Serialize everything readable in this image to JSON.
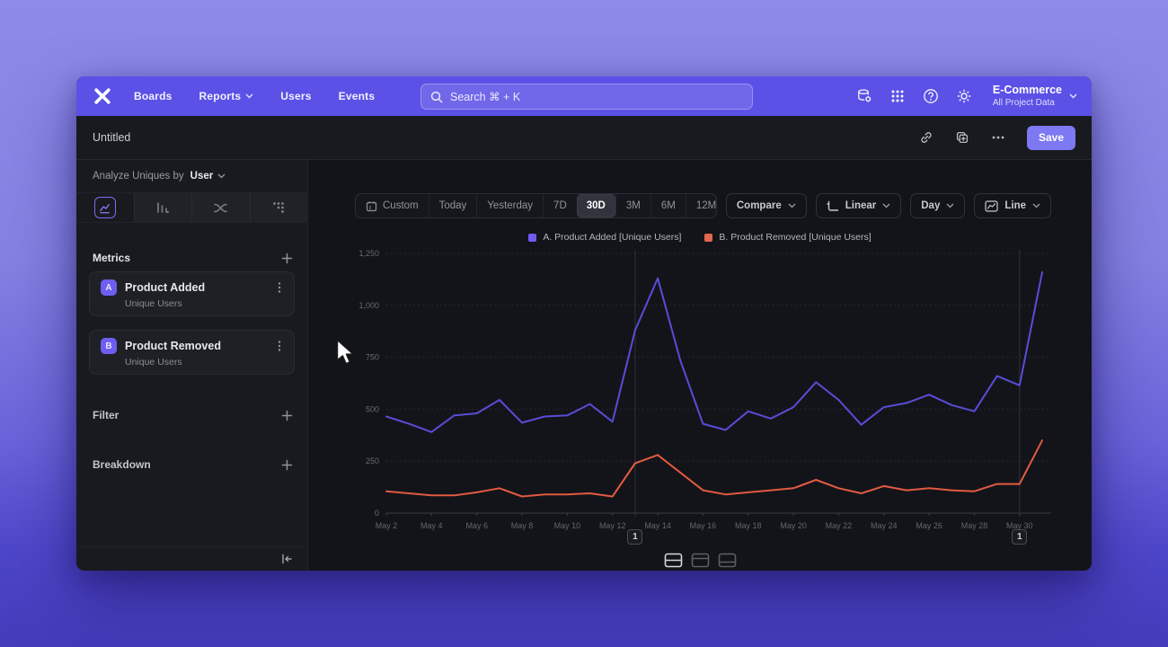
{
  "nav": {
    "items": [
      "Boards",
      "Reports",
      "Users",
      "Events"
    ],
    "search_placeholder": "Search  ⌘ + K",
    "project_name": "E-Commerce",
    "project_scope": "All Project Data"
  },
  "report": {
    "title": "Untitled",
    "save_label": "Save"
  },
  "sidebar": {
    "analyze_prefix": "Analyze Uniques by",
    "analyze_value": "User",
    "metrics_label": "Metrics",
    "filter_label": "Filter",
    "breakdown_label": "Breakdown",
    "metrics": [
      {
        "badge": "A",
        "name": "Product Added",
        "sub": "Unique Users"
      },
      {
        "badge": "B",
        "name": "Product Removed",
        "sub": "Unique Users"
      }
    ]
  },
  "toolbar": {
    "ranges": [
      "Custom",
      "Today",
      "Yesterday",
      "7D",
      "30D",
      "3M",
      "6M",
      "12M"
    ],
    "selected_range": "30D",
    "compare_label": "Compare",
    "scale_label": "Linear",
    "interval_label": "Day",
    "chart_type_label": "Line"
  },
  "legend": [
    {
      "label": "A. Product Added [Unique Users]",
      "color": "#6e5cf0"
    },
    {
      "label": "B. Product Removed [Unique Users]",
      "color": "#e0684f"
    }
  ],
  "annotations": [
    {
      "label": "1",
      "x_index": 11
    },
    {
      "label": "1",
      "x_index": 28
    }
  ],
  "chart_data": {
    "type": "line",
    "x": [
      "May 2",
      "May 3",
      "May 4",
      "May 5",
      "May 6",
      "May 7",
      "May 8",
      "May 9",
      "May 10",
      "May 11",
      "May 12",
      "May 13",
      "May 14",
      "May 15",
      "May 16",
      "May 17",
      "May 18",
      "May 19",
      "May 20",
      "May 21",
      "May 22",
      "May 23",
      "May 24",
      "May 25",
      "May 26",
      "May 27",
      "May 28",
      "May 29",
      "May 30",
      "May 31"
    ],
    "x_tick_labels": [
      "May 2",
      "May 4",
      "May 6",
      "May 8",
      "May 10",
      "May 12",
      "May 14",
      "May 16",
      "May 18",
      "May 20",
      "May 22",
      "May 24",
      "May 26",
      "May 28",
      "May 30"
    ],
    "series": [
      {
        "name": "A. Product Added [Unique Users]",
        "color": "#574dd8",
        "values": [
          465,
          430,
          390,
          470,
          480,
          545,
          435,
          465,
          470,
          525,
          440,
          880,
          1130,
          735,
          430,
          400,
          490,
          455,
          510,
          630,
          545,
          425,
          510,
          530,
          570,
          520,
          490,
          660,
          615,
          1160
        ]
      },
      {
        "name": "B. Product Removed [Unique Users]",
        "color": "#e25a41",
        "values": [
          105,
          95,
          85,
          85,
          100,
          120,
          80,
          90,
          90,
          95,
          80,
          240,
          280,
          195,
          110,
          90,
          100,
          110,
          120,
          160,
          120,
          95,
          130,
          110,
          120,
          110,
          105,
          140,
          140,
          350
        ]
      }
    ],
    "ylim": [
      0,
      1250
    ],
    "yticks": [
      0,
      250,
      500,
      750,
      1000,
      1250
    ],
    "ytick_labels": [
      "0",
      "250",
      "500",
      "750",
      "1,000",
      "1,250"
    ],
    "grid": "horizontal-dashed",
    "legend_position": "top-center",
    "title": "",
    "xlabel": "",
    "ylabel": ""
  }
}
